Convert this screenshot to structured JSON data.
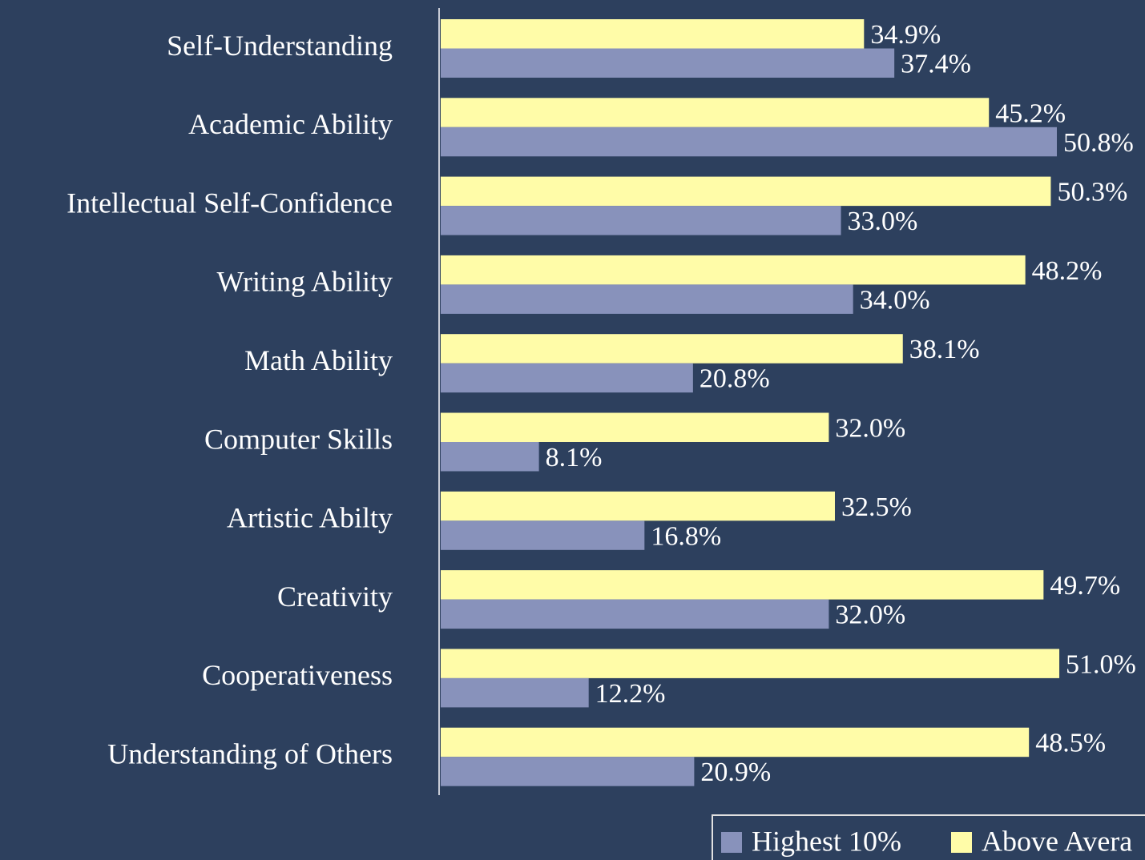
{
  "chart_data": {
    "type": "hbar",
    "categories": [
      "Self-Understanding",
      "Academic Ability",
      "Intellectual Self-Confidence",
      "Writing Ability",
      "Math Ability",
      "Computer Skills",
      "Artistic Abilty",
      "Creativity",
      "Cooperativeness",
      "Understanding of Others"
    ],
    "series": [
      {
        "name": "Highest 10%",
        "color": "#8892bb",
        "values": [
          37.4,
          50.8,
          33.0,
          34.0,
          20.8,
          8.1,
          16.8,
          32.0,
          12.2,
          20.9
        ],
        "value_labels": [
          "37.4%",
          "50.8%",
          "33.0%",
          "34.0%",
          "20.8%",
          "8.1%",
          "16.8%",
          "32.0%",
          "12.2%",
          "20.9%"
        ]
      },
      {
        "name": "Above Avera",
        "color": "#fffca8",
        "values": [
          34.9,
          45.2,
          50.3,
          48.2,
          38.1,
          32.0,
          32.5,
          49.7,
          51.0,
          48.5
        ],
        "value_labels": [
          "34.9%",
          "45.2%",
          "50.3%",
          "48.2%",
          "38.1%",
          "32.0%",
          "32.5%",
          "49.7%",
          "51.0%",
          "48.5%"
        ]
      }
    ],
    "xlim": [
      0,
      58
    ],
    "legend": "bottom-right"
  }
}
